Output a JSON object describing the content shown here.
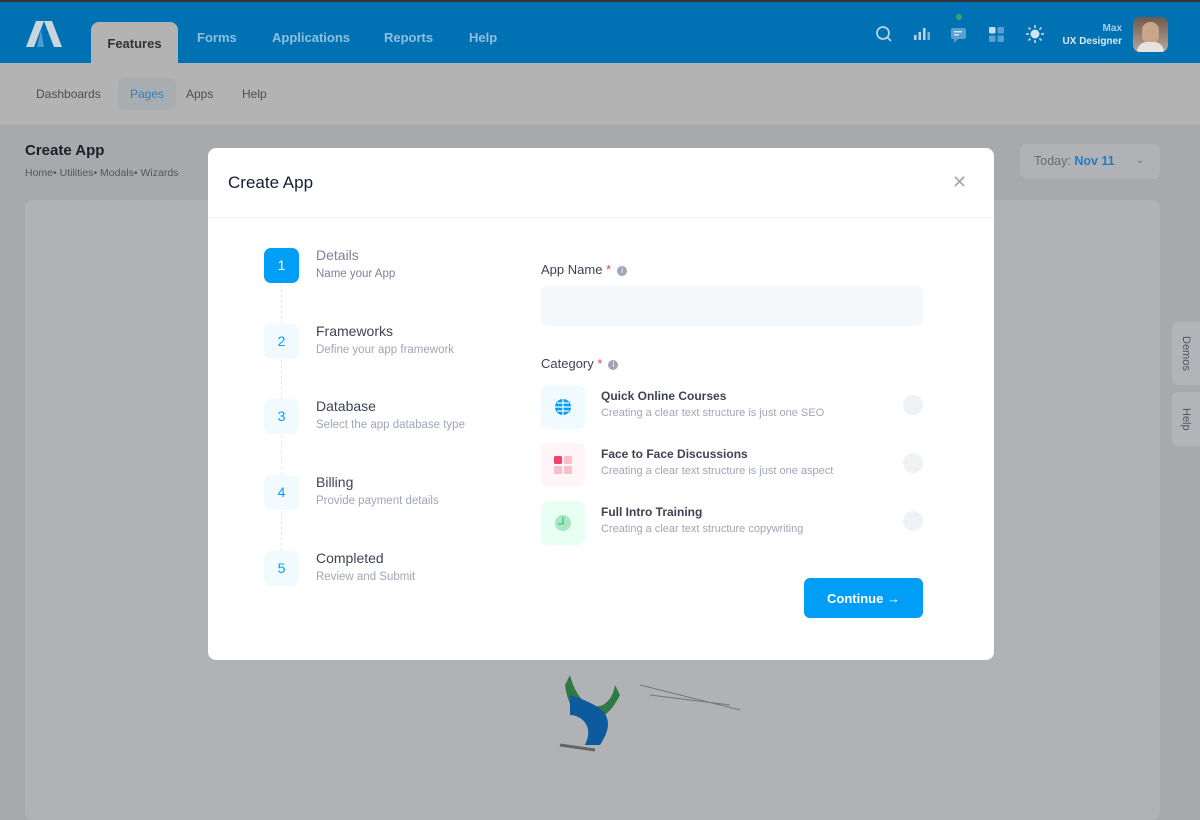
{
  "header": {
    "tabs": [
      "Features",
      "Forms",
      "Applications",
      "Reports",
      "Help"
    ],
    "active_tab": "Features",
    "user": {
      "name": "Max",
      "role": "UX Designer"
    },
    "icons": [
      "search-icon",
      "chart-icon",
      "chat-icon",
      "grid-icon",
      "sun-icon"
    ]
  },
  "subnav": {
    "items": [
      "Dashboards",
      "Pages",
      "Apps",
      "Help"
    ],
    "active": "Pages"
  },
  "page": {
    "title": "Create App",
    "breadcrumbs": [
      "Home",
      "Utilities",
      "Modals",
      "Wizards"
    ],
    "today_label": "Today:",
    "today_value": "Nov 11"
  },
  "side_tabs": [
    "Demos",
    "Help"
  ],
  "modal": {
    "title": "Create App",
    "steps": [
      {
        "n": "1",
        "title": "Details",
        "desc": "Name your App"
      },
      {
        "n": "2",
        "title": "Frameworks",
        "desc": "Define your app framework"
      },
      {
        "n": "3",
        "title": "Database",
        "desc": "Select the app database type"
      },
      {
        "n": "4",
        "title": "Billing",
        "desc": "Provide payment details"
      },
      {
        "n": "5",
        "title": "Completed",
        "desc": "Review and Submit"
      }
    ],
    "current_step": 1,
    "app_name_label": "App Name",
    "app_name_value": "",
    "required": "*",
    "category_label": "Category",
    "categories": [
      {
        "title": "Quick Online Courses",
        "desc": "Creating a clear text structure is just one SEO",
        "icon": "globe-icon",
        "color": "#009ef7"
      },
      {
        "title": "Face to Face Discussions",
        "desc": "Creating a clear text structure is just one aspect",
        "icon": "grid-icon",
        "color": "#f1416c"
      },
      {
        "title": "Full Intro Training",
        "desc": "Creating a clear text structure copywriting",
        "icon": "clock-icon",
        "color": "#50cd89"
      }
    ],
    "continue_label": "Continue"
  }
}
